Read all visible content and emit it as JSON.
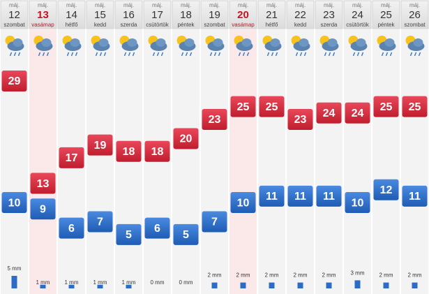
{
  "days": [
    {
      "month": "máj.",
      "day": "12",
      "weekday": "szombat",
      "high": 29,
      "low": 10,
      "precip": 5,
      "precip_label": "5 mm"
    },
    {
      "month": "máj.",
      "day": "13",
      "weekday": "vasámap",
      "high": 13,
      "low": 9,
      "precip": 1,
      "precip_label": "1 mm"
    },
    {
      "month": "máj.",
      "day": "14",
      "weekday": "hétfő",
      "high": 17,
      "low": 6,
      "precip": 1,
      "precip_label": "1 mm"
    },
    {
      "month": "máj.",
      "day": "15",
      "weekday": "kedd",
      "high": 19,
      "low": 7,
      "precip": 1,
      "precip_label": "1 mm"
    },
    {
      "month": "máj.",
      "day": "16",
      "weekday": "szerda",
      "high": 18,
      "low": 5,
      "precip": 1,
      "precip_label": "1 mm"
    },
    {
      "month": "máj.",
      "day": "17",
      "weekday": "csütörtök",
      "high": 18,
      "low": 6,
      "precip": 0,
      "precip_label": "0 mm"
    },
    {
      "month": "máj.",
      "day": "18",
      "weekday": "péntek",
      "high": 20,
      "low": 5,
      "precip": 0,
      "precip_label": "0 mm"
    },
    {
      "month": "máj.",
      "day": "19",
      "weekday": "szombat",
      "high": 23,
      "low": 7,
      "precip": 2,
      "precip_label": "2 mm"
    },
    {
      "month": "máj.",
      "day": "20",
      "weekday": "vasámap",
      "high": 25,
      "low": 10,
      "precip": 2,
      "precip_label": "2 mm"
    },
    {
      "month": "máj.",
      "day": "21",
      "weekday": "hétfő",
      "high": 25,
      "low": 11,
      "precip": 2,
      "precip_label": "2 mm"
    },
    {
      "month": "máj.",
      "day": "22",
      "weekday": "kedd",
      "high": 23,
      "low": 11,
      "precip": 2,
      "precip_label": "2 mm"
    },
    {
      "month": "máj.",
      "day": "23",
      "weekday": "szerda",
      "high": 24,
      "low": 11,
      "precip": 2,
      "precip_label": "2 mm"
    },
    {
      "month": "máj.",
      "day": "24",
      "weekday": "csütörtök",
      "high": 24,
      "low": 10,
      "precip": 3,
      "precip_label": "3 mm"
    },
    {
      "month": "máj.",
      "day": "25",
      "weekday": "péntek",
      "high": 25,
      "low": 12,
      "precip": 2,
      "precip_label": "2 mm"
    },
    {
      "month": "máj.",
      "day": "26",
      "weekday": "szombat",
      "high": 25,
      "low": 11,
      "precip": 2,
      "precip_label": "2 mm"
    }
  ]
}
